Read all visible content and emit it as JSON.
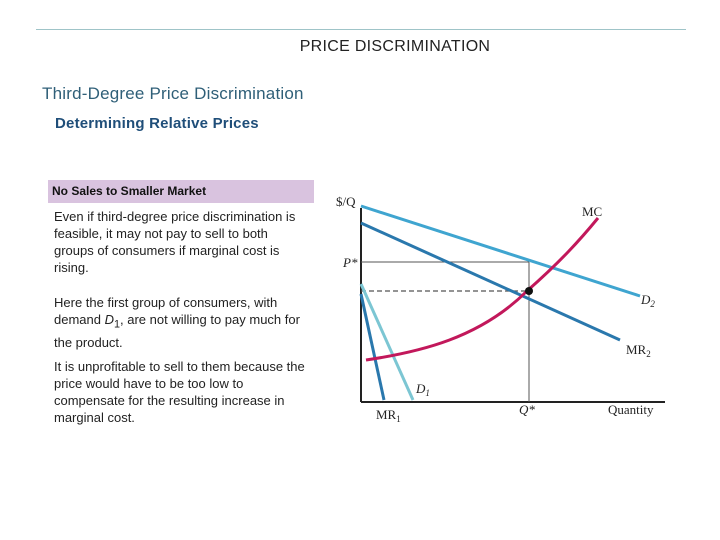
{
  "slide": {
    "title": "PRICE DISCRIMINATION",
    "subtitle": "Third-Degree Price Discrimination",
    "section_heading": "Determining Relative Prices"
  },
  "box": {
    "header": "No Sales to Smaller Market"
  },
  "paragraphs": {
    "p1": "Even if third-degree price discrimination is feasible, it may not pay to sell to both groups of consumers if marginal cost is rising.",
    "p2_before": "Here the first group of consumers, with demand ",
    "p2_var": "D",
    "p2_sub": "1",
    "p2_after": ", are not willing to pay much for the product.",
    "p3": "It is unprofitable to sell to them because the price would have to be too low to compensate for the resulting increase in marginal cost."
  },
  "diagram": {
    "y_axis_label": "$/Q",
    "x_axis_label": "Quantity",
    "price_label": "P*",
    "quantity_label": "Q*",
    "curves": {
      "mc": {
        "label": "MC"
      },
      "d2": {
        "label": "D",
        "sub": "2"
      },
      "mr2": {
        "label": "MR",
        "sub": "2"
      },
      "d1": {
        "label": "D",
        "sub": "1"
      },
      "mr1": {
        "label": "MR",
        "sub": "1"
      }
    },
    "colors": {
      "mc": "#c2185b",
      "demand": "#3fa5d0",
      "marginal_revenue": "#2a78ad",
      "d1": "#7cc6d3",
      "axis": "#222222",
      "guide": "#555555"
    }
  }
}
